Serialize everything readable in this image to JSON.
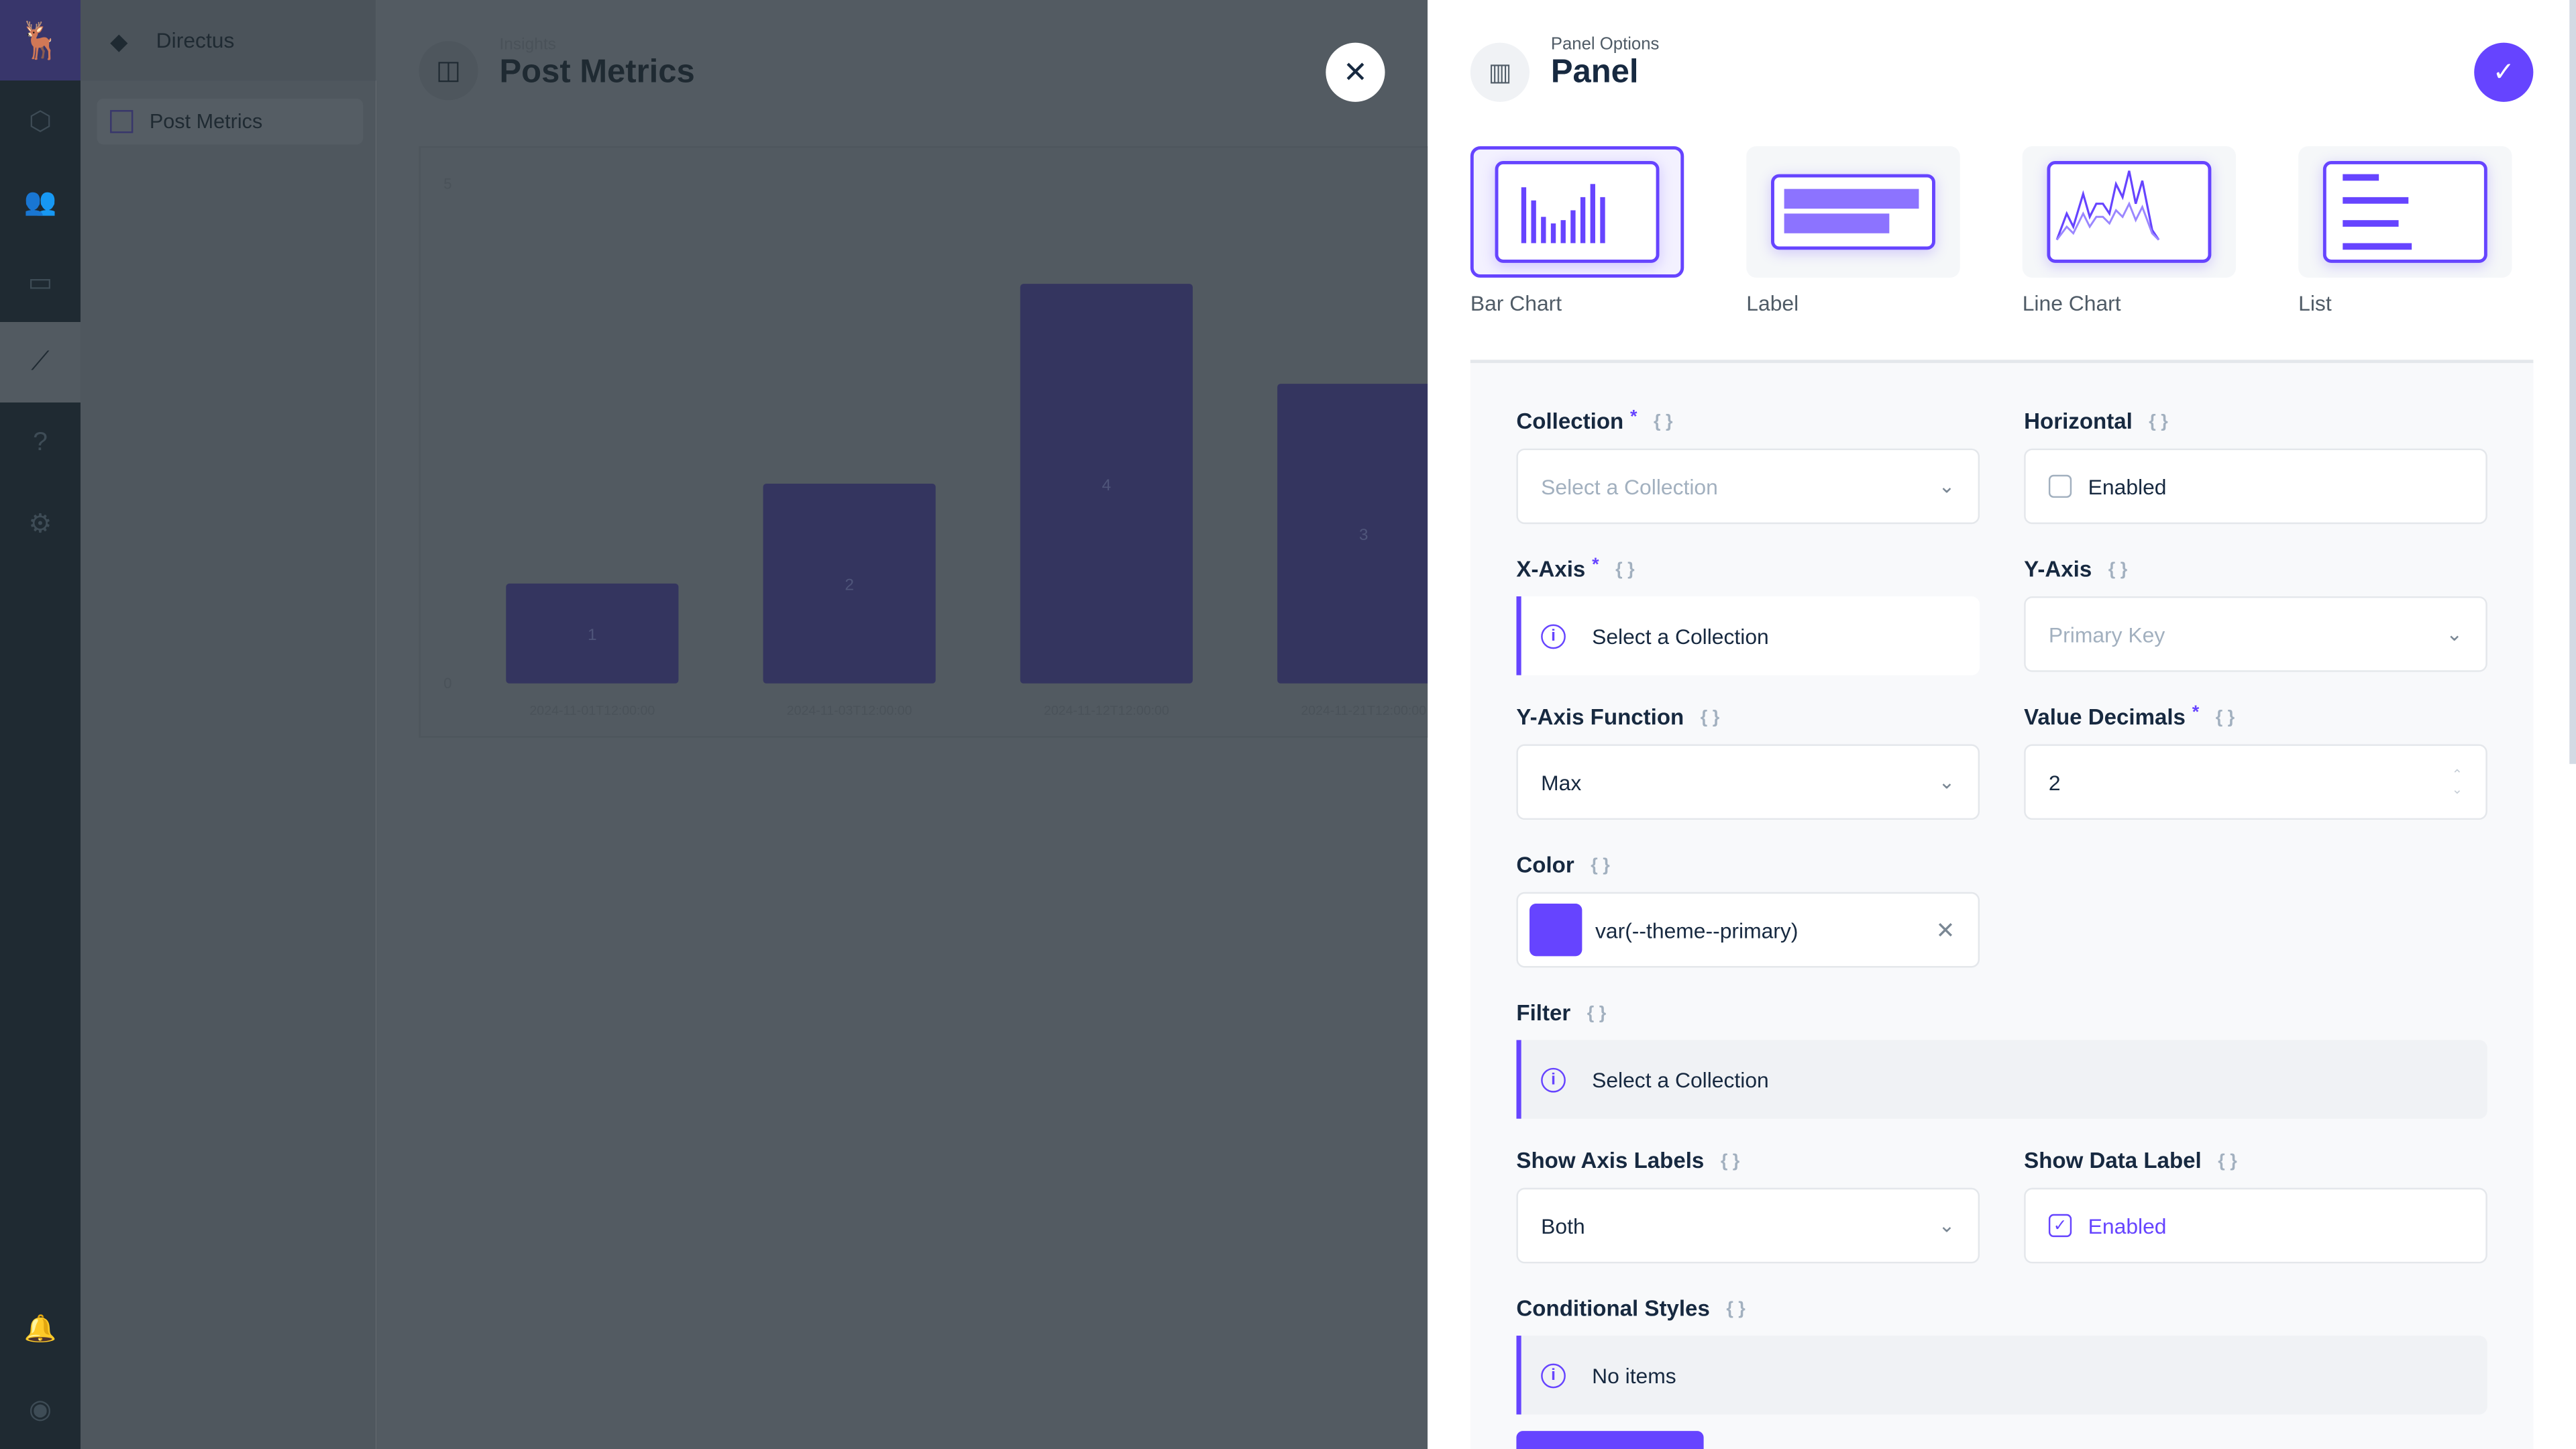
{
  "nav": {
    "items": [
      {
        "icon": "box-icon"
      },
      {
        "icon": "users-icon"
      },
      {
        "icon": "folder-icon"
      },
      {
        "icon": "insights-icon",
        "active": true
      },
      {
        "icon": "help-icon"
      },
      {
        "icon": "gear-icon"
      }
    ],
    "bottom": [
      {
        "icon": "bell-icon"
      },
      {
        "icon": "user-icon"
      }
    ]
  },
  "sidebar": {
    "project": "Directus",
    "items": [
      {
        "label": "Post Metrics"
      }
    ]
  },
  "header": {
    "breadcrumb": "Insights",
    "title": "Post Metrics"
  },
  "chart_data": {
    "type": "bar",
    "categories": [
      "2024-11-01T12:00:00",
      "2024-11-03T12:00:00",
      "2024-11-12T12:00:00",
      "2024-11-21T12:00:00"
    ],
    "values": [
      1,
      2,
      4,
      3
    ],
    "ylim": [
      0,
      5
    ],
    "yticks": [
      "5",
      "0"
    ],
    "data_labels": true,
    "color": "#34355f"
  },
  "drawer": {
    "subtitle": "Panel Options",
    "title": "Panel",
    "accent": "#6644ff",
    "types": [
      {
        "label": "Bar Chart",
        "selected": true
      },
      {
        "label": "Label"
      },
      {
        "label": "Line Chart"
      },
      {
        "label": "List"
      }
    ],
    "fields": {
      "collection": {
        "label": "Collection",
        "required": true,
        "placeholder": "Select a Collection"
      },
      "horizontal": {
        "label": "Horizontal",
        "value": "Enabled",
        "checked": false
      },
      "x_axis": {
        "label": "X-Axis",
        "required": true,
        "notice": "Select a Collection"
      },
      "y_axis": {
        "label": "Y-Axis",
        "placeholder": "Primary Key"
      },
      "y_axis_function": {
        "label": "Y-Axis Function",
        "value": "Max"
      },
      "value_decimals": {
        "label": "Value Decimals",
        "required": true,
        "value": "2"
      },
      "color": {
        "label": "Color",
        "value": "var(--theme--primary)",
        "swatch": "#6644ff"
      },
      "filter": {
        "label": "Filter",
        "notice": "Select a Collection"
      },
      "show_axis_labels": {
        "label": "Show Axis Labels",
        "value": "Both"
      },
      "show_data_label": {
        "label": "Show Data Label",
        "value": "Enabled",
        "checked": true
      },
      "conditional_styles": {
        "label": "Conditional Styles",
        "notice": "No items"
      }
    },
    "raw": "{ }",
    "required_mark": "*"
  }
}
